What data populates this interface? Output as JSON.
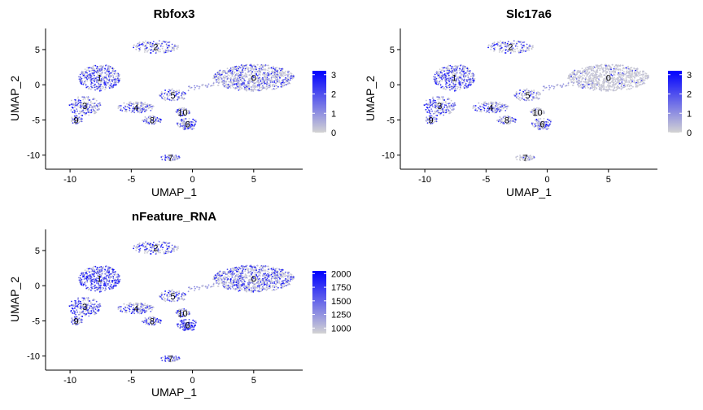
{
  "chart_data": [
    {
      "type": "scatter",
      "title": "Rbfox3",
      "xlabel": "UMAP_1",
      "ylabel": "UMAP_2",
      "xlim": [
        -12,
        9
      ],
      "ylim": [
        -12,
        8
      ],
      "xticks": [
        -10,
        -5,
        0,
        5
      ],
      "yticks": [
        -10,
        -5,
        0,
        5
      ],
      "xtick_labels": [
        "-10",
        "-5",
        "0",
        "5"
      ],
      "ytick_labels": [
        "-10",
        "-5",
        "0",
        "5"
      ],
      "legend": {
        "ticks": [
          0,
          1,
          2,
          3
        ],
        "labels": [
          "0",
          "1",
          "2",
          "3"
        ],
        "min": 0,
        "max": 3.2,
        "low_color": "#d3d3d3",
        "high_color": "#0000ff"
      },
      "clusters": [
        {
          "label": "0",
          "x": 5.0,
          "y": 1.0,
          "expr": 0.3
        },
        {
          "label": "1",
          "x": -7.6,
          "y": 1.0,
          "expr": 0.5
        },
        {
          "label": "2",
          "x": -3.0,
          "y": 5.4,
          "expr": 0.4
        },
        {
          "label": "3",
          "x": -8.8,
          "y": -3.0,
          "expr": 0.45
        },
        {
          "label": "4",
          "x": -4.6,
          "y": -3.2,
          "expr": 0.4
        },
        {
          "label": "5",
          "x": -1.6,
          "y": -1.5,
          "expr": 0.4
        },
        {
          "label": "6",
          "x": -0.4,
          "y": -5.6,
          "expr": 0.55
        },
        {
          "label": "7",
          "x": -1.8,
          "y": -10.4,
          "expr": 0.35
        },
        {
          "label": "8",
          "x": -3.3,
          "y": -5.0,
          "expr": 0.4
        },
        {
          "label": "9",
          "x": -9.5,
          "y": -5.0,
          "expr": 0.4
        },
        {
          "label": "10",
          "x": -0.8,
          "y": -3.9,
          "expr": 0.35
        }
      ]
    },
    {
      "type": "scatter",
      "title": "Slc17a6",
      "xlabel": "UMAP_1",
      "ylabel": "UMAP_2",
      "xlim": [
        -12,
        9
      ],
      "ylim": [
        -12,
        8
      ],
      "xticks": [
        -10,
        -5,
        0,
        5
      ],
      "yticks": [
        -10,
        -5,
        0,
        5
      ],
      "xtick_labels": [
        "-10",
        "-5",
        "0",
        "5"
      ],
      "ytick_labels": [
        "-10",
        "-5",
        "0",
        "5"
      ],
      "legend": {
        "ticks": [
          0,
          1,
          2,
          3
        ],
        "labels": [
          "0",
          "1",
          "2",
          "3"
        ],
        "min": 0,
        "max": 3.2,
        "low_color": "#d3d3d3",
        "high_color": "#0000ff"
      },
      "clusters": [
        {
          "label": "0",
          "x": 5.0,
          "y": 1.0,
          "expr": 0.05
        },
        {
          "label": "1",
          "x": -7.6,
          "y": 1.0,
          "expr": 0.5
        },
        {
          "label": "2",
          "x": -3.0,
          "y": 5.4,
          "expr": 0.4
        },
        {
          "label": "3",
          "x": -8.8,
          "y": -3.0,
          "expr": 0.5
        },
        {
          "label": "4",
          "x": -4.6,
          "y": -3.2,
          "expr": 0.4
        },
        {
          "label": "5",
          "x": -1.6,
          "y": -1.5,
          "expr": 0.3
        },
        {
          "label": "6",
          "x": -0.4,
          "y": -5.6,
          "expr": 0.45
        },
        {
          "label": "7",
          "x": -1.8,
          "y": -10.4,
          "expr": 0.05
        },
        {
          "label": "8",
          "x": -3.3,
          "y": -5.0,
          "expr": 0.35
        },
        {
          "label": "9",
          "x": -9.5,
          "y": -5.0,
          "expr": 0.45
        },
        {
          "label": "10",
          "x": -0.8,
          "y": -3.9,
          "expr": 0.05
        }
      ]
    },
    {
      "type": "scatter",
      "title": "nFeature_RNA",
      "xlabel": "UMAP_1",
      "ylabel": "UMAP_2",
      "xlim": [
        -12,
        9
      ],
      "ylim": [
        -12,
        8
      ],
      "xticks": [
        -10,
        -5,
        0,
        5
      ],
      "yticks": [
        -10,
        -5,
        0,
        5
      ],
      "xtick_labels": [
        "-10",
        "-5",
        "0",
        "5"
      ],
      "ytick_labels": [
        "-10",
        "-5",
        "0",
        "5"
      ],
      "legend": {
        "ticks": [
          1000,
          1250,
          1500,
          1750,
          2000
        ],
        "labels": [
          "1000",
          "1250",
          "1500",
          "1750",
          "2000"
        ],
        "min": 900,
        "max": 2050,
        "low_color": "#d3d3d3",
        "high_color": "#0000ff"
      },
      "clusters": [
        {
          "label": "0",
          "x": 5.0,
          "y": 1.0,
          "expr": 0.4
        },
        {
          "label": "1",
          "x": -7.6,
          "y": 1.0,
          "expr": 0.7
        },
        {
          "label": "2",
          "x": -3.0,
          "y": 5.4,
          "expr": 0.5
        },
        {
          "label": "3",
          "x": -8.8,
          "y": -3.0,
          "expr": 0.6
        },
        {
          "label": "4",
          "x": -4.6,
          "y": -3.2,
          "expr": 0.5
        },
        {
          "label": "5",
          "x": -1.6,
          "y": -1.5,
          "expr": 0.4
        },
        {
          "label": "6",
          "x": -0.4,
          "y": -5.6,
          "expr": 0.85
        },
        {
          "label": "7",
          "x": -1.8,
          "y": -10.4,
          "expr": 0.5
        },
        {
          "label": "8",
          "x": -3.3,
          "y": -5.0,
          "expr": 0.5
        },
        {
          "label": "9",
          "x": -9.5,
          "y": -5.0,
          "expr": 0.5
        },
        {
          "label": "10",
          "x": -0.8,
          "y": -3.9,
          "expr": 0.4
        }
      ]
    }
  ]
}
